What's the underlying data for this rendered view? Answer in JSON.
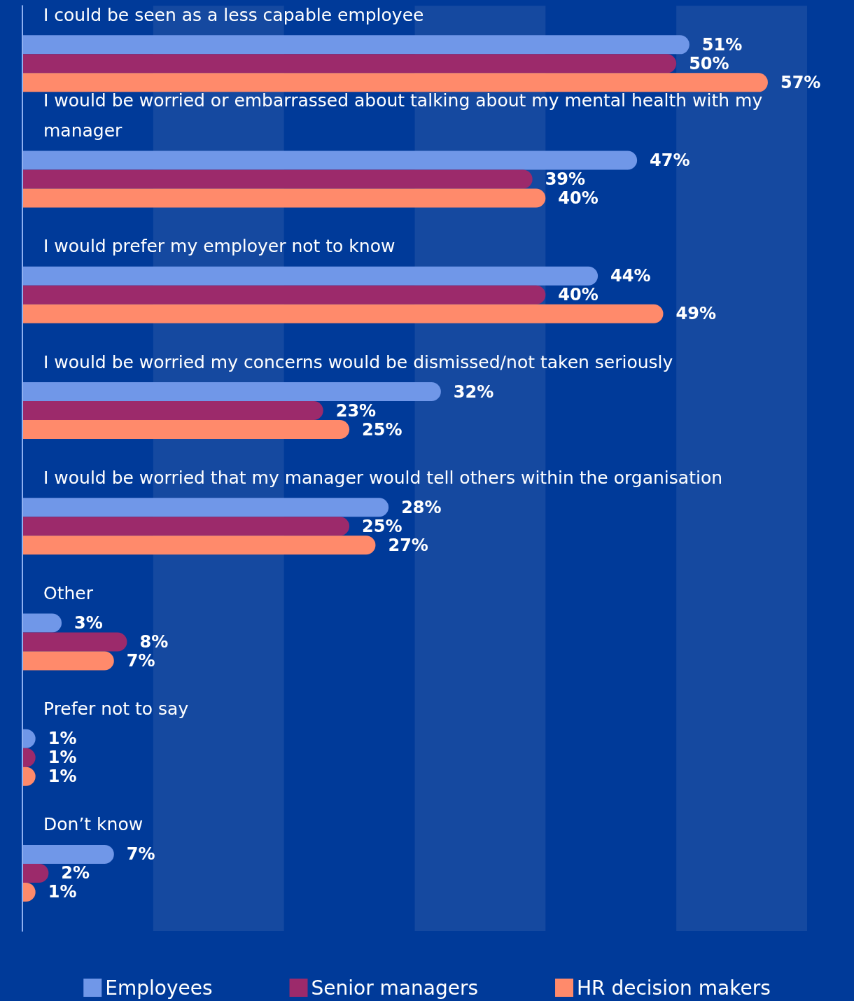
{
  "chart_data": {
    "type": "bar",
    "orientation": "horizontal",
    "categories": [
      "I could be seen as a less capable employee",
      "I would be worried or embarrassed about talking about my mental health with my manager",
      "I would prefer my employer not to know",
      "I would be worried my concerns would be dismissed/not taken seriously",
      "I would be worried that my manager would tell others within the organisation",
      "Other",
      "Prefer not to say",
      "Don’t know"
    ],
    "series": [
      {
        "name": "Employees",
        "color": "#7097e8",
        "values": [
          51,
          47,
          44,
          32,
          28,
          3,
          1,
          7
        ],
        "value_labels": [
          "51%",
          "47%",
          "44%",
          "32%",
          "28%",
          "3%",
          "1%",
          "7%"
        ]
      },
      {
        "name": "Senior managers",
        "color": "#9c2a6b",
        "values": [
          50,
          39,
          40,
          23,
          25,
          8,
          1,
          2
        ],
        "value_labels": [
          "50%",
          "39%",
          "40%",
          "23%",
          "25%",
          "8%",
          "1%",
          "2%"
        ]
      },
      {
        "name": "HR decision makers",
        "color": "#ff8a6b",
        "values": [
          57,
          40,
          49,
          25,
          27,
          7,
          1,
          1
        ],
        "value_labels": [
          "57%",
          "40%",
          "49%",
          "25%",
          "27%",
          "7%",
          "1%",
          "1%"
        ]
      }
    ],
    "xlim": [
      0,
      60
    ],
    "tick_labels": "y",
    "grid": false,
    "legend": "bottom",
    "bands": [
      {
        "axis": "x",
        "from": 10,
        "to": 20,
        "color": "#1549a0"
      },
      {
        "axis": "x",
        "from": 30,
        "to": 40,
        "color": "#1549a0"
      },
      {
        "axis": "x",
        "from": 50,
        "to": 60,
        "color": "#1549a0"
      }
    ]
  }
}
